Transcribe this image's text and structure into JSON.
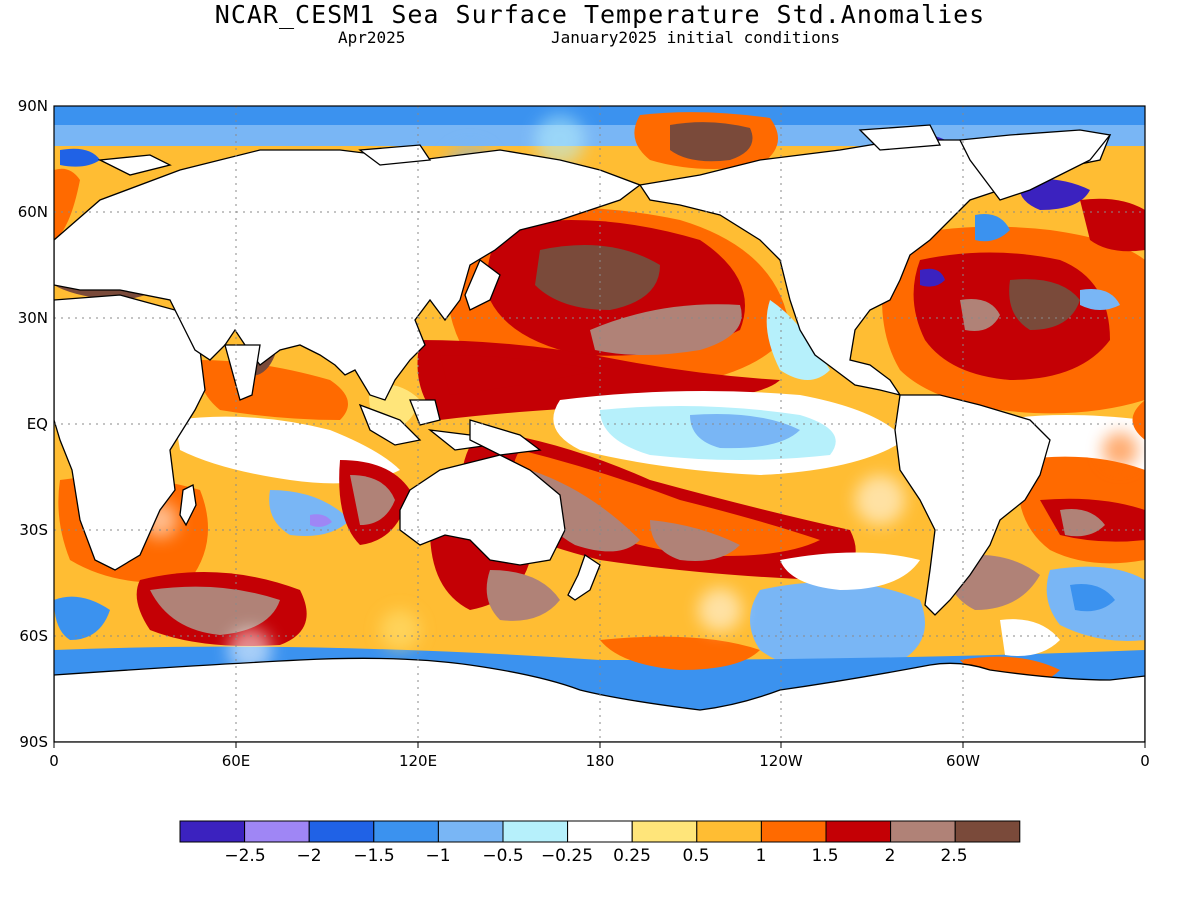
{
  "header": {
    "title": "NCAR_CESM1 Sea Surface Temperature Std.Anomalies",
    "valid_month": "Apr2025",
    "init": "January2025 initial conditions"
  },
  "axes": {
    "lat_labels": [
      "90N",
      "60N",
      "30N",
      "EQ",
      "30S",
      "60S",
      "90S"
    ],
    "lon_labels": [
      "0",
      "60E",
      "120E",
      "180",
      "120W",
      "60W",
      "0"
    ],
    "grid": "dotted"
  },
  "colorbar": {
    "colors": [
      "#3b22bf",
      "#9f86f5",
      "#2062e6",
      "#3b92ef",
      "#79b6f5",
      "#b6f0fb",
      "#ffffff",
      "#ffe57a",
      "#ffbd33",
      "#ff6a00",
      "#c40005",
      "#b08277",
      "#7a4a3a"
    ],
    "labels": [
      "−2.5",
      "−2",
      "−1.5",
      "−1",
      "−0.5",
      "−0.25",
      "0.25",
      "0.5",
      "1",
      "1.5",
      "2",
      "2.5"
    ]
  },
  "map_features": {
    "land_color": "#ffffff",
    "highlights": [
      {
        "region": "Western tropical Pacific",
        "anomaly": 2.5
      },
      {
        "region": "North Pacific (central)",
        "anomaly": 2.5
      },
      {
        "region": "North Atlantic",
        "anomaly": 2.0
      },
      {
        "region": "Arctic north of Bering Strait",
        "anomaly": 2.5
      },
      {
        "region": "Equatorial eastern Pacific",
        "anomaly": -0.5
      },
      {
        "region": "Southern Ocean south of Australia",
        "anomaly": 2.5
      },
      {
        "region": "Southern Indian Ocean",
        "anomaly": 2.0
      },
      {
        "region": "South Atlantic (west)",
        "anomaly": 2.0
      },
      {
        "region": "Labrador Sea / Baffin Bay",
        "anomaly": -2.0
      },
      {
        "region": "Southern Ocean (Pacific sector)",
        "anomaly": -1.0
      }
    ]
  }
}
